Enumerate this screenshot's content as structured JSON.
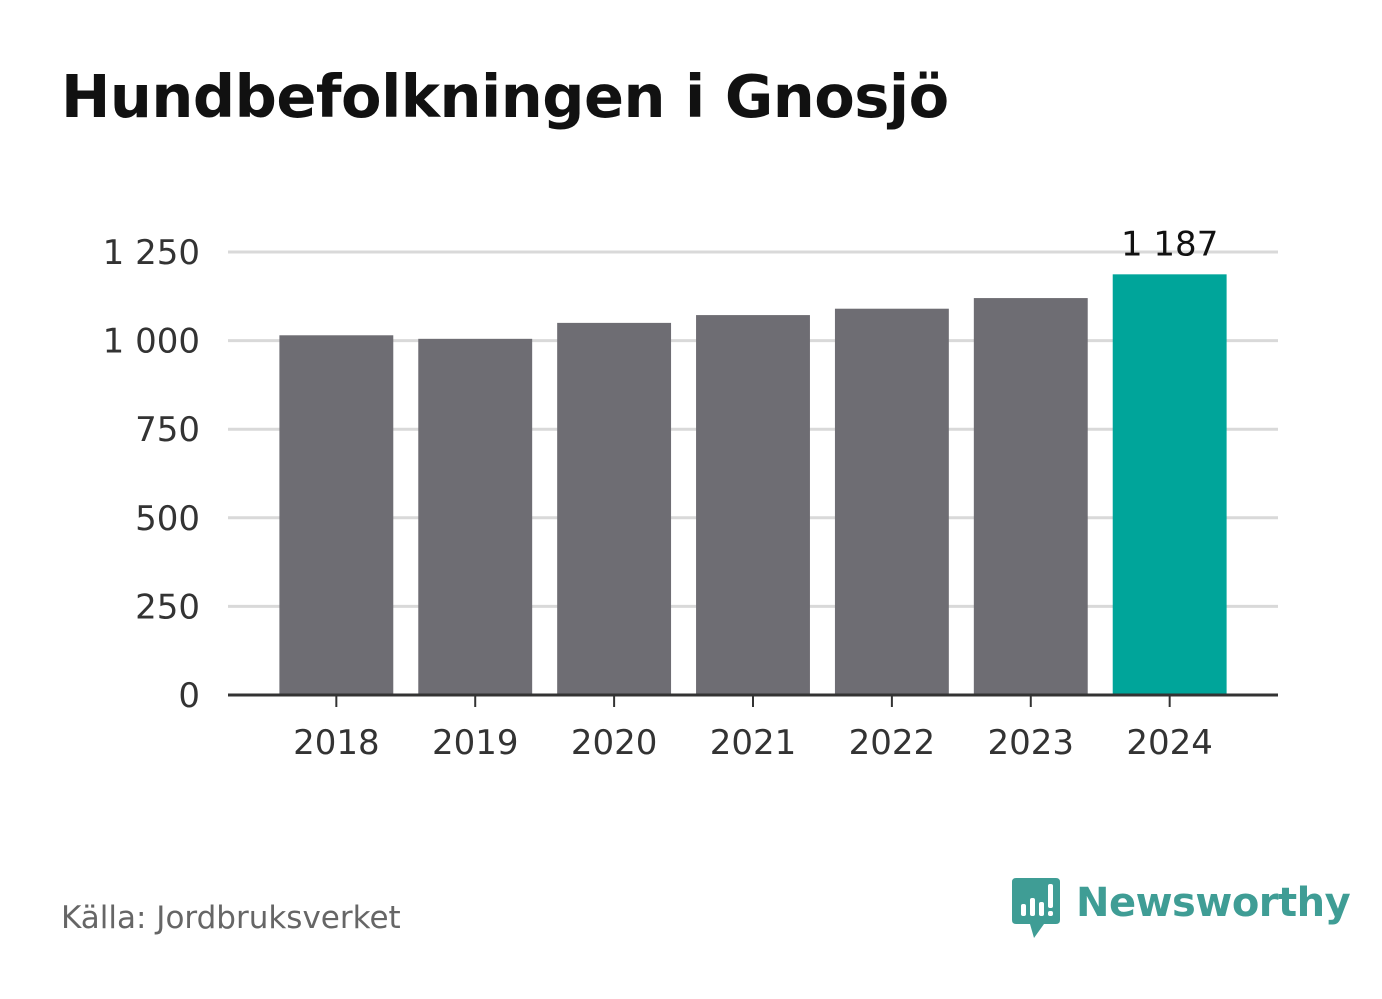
{
  "header": {
    "title": "Hundbefolkningen i Gnosjö"
  },
  "chart_data": {
    "type": "bar",
    "title": "Hundbefolkningen i Gnosjö",
    "categories": [
      "2018",
      "2019",
      "2020",
      "2021",
      "2022",
      "2023",
      "2024"
    ],
    "values": [
      1015,
      1005,
      1050,
      1072,
      1090,
      1120,
      1187
    ],
    "y_ticks": [
      0,
      250,
      500,
      750,
      1000,
      1250
    ],
    "y_tick_labels": [
      "0",
      "250",
      "500",
      "750",
      "1 000",
      "1 250"
    ],
    "ylim": [
      0,
      1250
    ],
    "xlabel": "",
    "ylabel": "",
    "grid": true,
    "legend": "none",
    "data_labels": [
      {
        "category": "2024",
        "text": "1 187"
      }
    ],
    "highlight_category": "2024",
    "colors": {
      "bar": "#6e6d73",
      "highlight": "#00a59a",
      "grid": "#d9d9d9",
      "axis": "#333333"
    }
  },
  "footer": {
    "source": "Källa: Jordbruksverket",
    "brand": "Newsworthy",
    "brand_icon": "newsworthy-logo-icon",
    "brand_color": "#3f9d95"
  }
}
